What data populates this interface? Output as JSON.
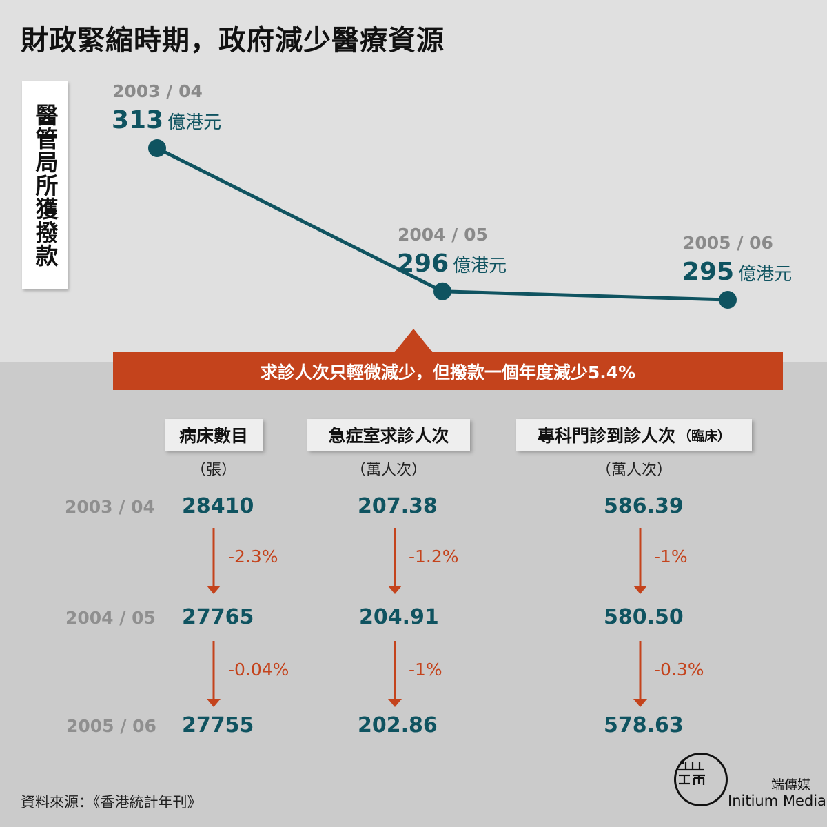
{
  "title": "財政緊縮時期，政府減少醫療資源",
  "banner": "求診人次只輕微減少，但撥款一個年度減少5.4%",
  "source": "資料來源：《香港統計年刊》",
  "brand": {
    "cn": "端傳媒",
    "en": "Initium Media"
  },
  "colors": {
    "accent": "#c4431c",
    "teal": "#0f5360",
    "top_bg": "#e0e0e0",
    "bottom_bg": "#cbcbcb"
  },
  "chart_data": [
    {
      "type": "line",
      "ylabel": "醫管局所獲撥款",
      "unit": "億港元",
      "x": [
        "2003 / 04",
        "2004 / 05",
        "2005 / 06"
      ],
      "values": [
        313,
        296,
        295
      ],
      "labels": [
        "313",
        "296",
        "295"
      ],
      "ylim": [
        290,
        320
      ],
      "grid": false
    },
    {
      "type": "table",
      "years": [
        "2003 / 04",
        "2004 / 05",
        "2005 / 06"
      ],
      "columns": [
        {
          "name": "病床數目",
          "name_suffix": "",
          "unit": "（張）",
          "values": [
            "28410",
            "27765",
            "27755"
          ],
          "changes": [
            "-2.3%",
            "-0.04%"
          ]
        },
        {
          "name": "急症室求診人次",
          "name_suffix": "",
          "unit": "（萬人次）",
          "values": [
            "207.38",
            "204.91",
            "202.86"
          ],
          "changes": [
            "-1.2%",
            "-1%"
          ]
        },
        {
          "name": "專科門診到診人次",
          "name_suffix": "（臨床）",
          "unit": "（萬人次）",
          "values": [
            "586.39",
            "580.50",
            "578.63"
          ],
          "changes": [
            "-1%",
            "-0.3%"
          ]
        }
      ]
    }
  ]
}
